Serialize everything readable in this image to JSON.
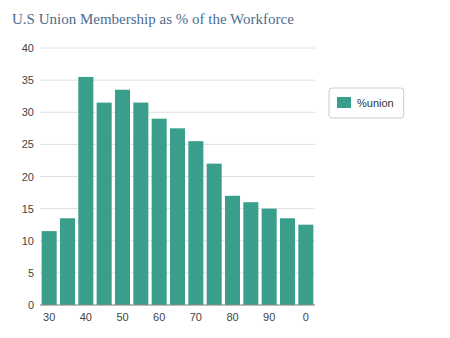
{
  "chart_data": {
    "type": "bar",
    "title": "U.S Union Membership as % of the Workforce",
    "categories": [
      "30",
      null,
      "40",
      null,
      "50",
      null,
      "60",
      null,
      "70",
      null,
      "80",
      null,
      "90",
      null,
      "0"
    ],
    "series": [
      {
        "name": "%union",
        "color": "#3A9E8C",
        "values": [
          11.5,
          13.5,
          35.5,
          31.5,
          33.5,
          31.5,
          29.0,
          27.5,
          25.5,
          22.0,
          17.0,
          16.0,
          15.0,
          13.5,
          12.5
        ]
      }
    ],
    "ylim": [
      0,
      40
    ],
    "yticks": [
      0,
      5,
      10,
      15,
      20,
      25,
      30,
      35,
      40
    ],
    "grid": true,
    "legend": "right"
  }
}
